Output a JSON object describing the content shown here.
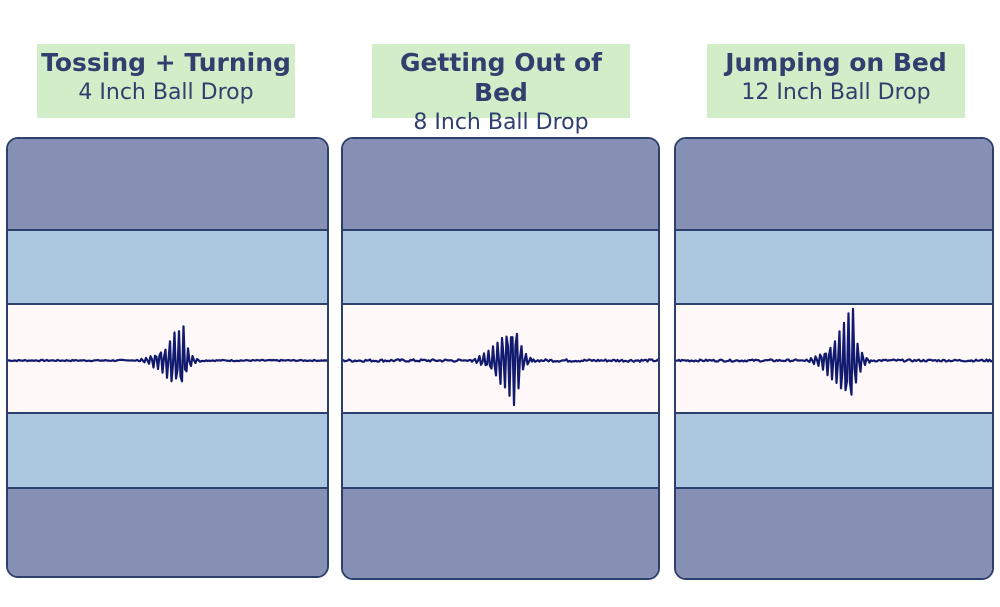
{
  "panels": [
    {
      "title": "Tossing + Turning",
      "subtitle": "4 Inch Ball Drop"
    },
    {
      "title": "Getting Out of Bed",
      "subtitle": "8 Inch Ball Drop"
    },
    {
      "title": "Jumping on Bed",
      "subtitle": "12 Inch Ball Drop"
    }
  ],
  "chart_data": [
    {
      "type": "line",
      "title": "Tossing + Turning",
      "subtitle": "4 Inch Ball Drop",
      "description_of_signal": "motion transfer waveform",
      "burst_center": 0.54,
      "burst_peak_amplitude": 0.34,
      "baseline_noise": 0.005,
      "colors": {
        "line": "#111a6e"
      }
    },
    {
      "type": "line",
      "title": "Getting Out of Bed",
      "subtitle": "8 Inch Ball Drop",
      "burst_center": 0.54,
      "burst_peak_amplitude": 0.47,
      "baseline_noise": 0.01,
      "colors": {
        "line": "#111a6e"
      }
    },
    {
      "type": "line",
      "title": "Jumping on Bed",
      "subtitle": "12 Inch Ball Drop",
      "burst_center": 0.55,
      "burst_peak_amplitude": 0.55,
      "baseline_noise": 0.008,
      "colors": {
        "line": "#111a6e"
      }
    }
  ]
}
